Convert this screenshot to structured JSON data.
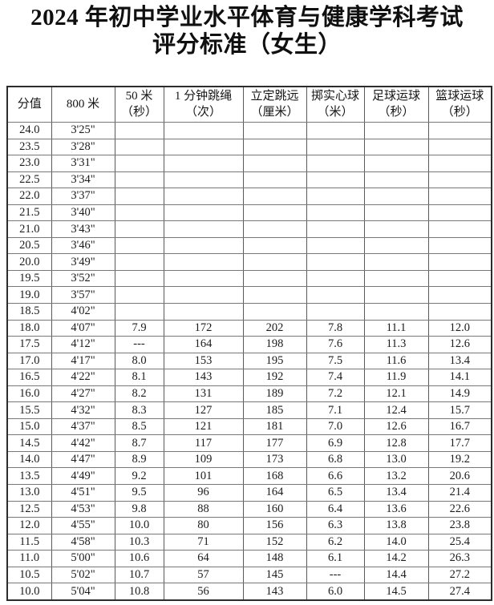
{
  "title": {
    "line1": "2024 年初中学业水平体育与健康学科考试",
    "line2": "评分标准（女生）"
  },
  "table": {
    "headers": [
      [
        "分值"
      ],
      [
        "800 米"
      ],
      [
        "50 米",
        "（秒）"
      ],
      [
        "1 分钟跳绳",
        "（次）"
      ],
      [
        "立定跳远",
        "（厘米）"
      ],
      [
        "掷实心球",
        "（米）"
      ],
      [
        "足球运球",
        "（秒）"
      ],
      [
        "篮球运球",
        "（秒）"
      ]
    ],
    "rows": [
      [
        "24.0",
        "3'25\"",
        "",
        "",
        "",
        "",
        "",
        ""
      ],
      [
        "23.5",
        "3'28\"",
        "",
        "",
        "",
        "",
        "",
        ""
      ],
      [
        "23.0",
        "3'31\"",
        "",
        "",
        "",
        "",
        "",
        ""
      ],
      [
        "22.5",
        "3'34\"",
        "",
        "",
        "",
        "",
        "",
        ""
      ],
      [
        "22.0",
        "3'37\"",
        "",
        "",
        "",
        "",
        "",
        ""
      ],
      [
        "21.5",
        "3'40\"",
        "",
        "",
        "",
        "",
        "",
        ""
      ],
      [
        "21.0",
        "3'43\"",
        "",
        "",
        "",
        "",
        "",
        ""
      ],
      [
        "20.5",
        "3'46\"",
        "",
        "",
        "",
        "",
        "",
        ""
      ],
      [
        "20.0",
        "3'49\"",
        "",
        "",
        "",
        "",
        "",
        ""
      ],
      [
        "19.5",
        "3'52\"",
        "",
        "",
        "",
        "",
        "",
        ""
      ],
      [
        "19.0",
        "3'57\"",
        "",
        "",
        "",
        "",
        "",
        ""
      ],
      [
        "18.5",
        "4'02\"",
        "",
        "",
        "",
        "",
        "",
        ""
      ],
      [
        "18.0",
        "4'07\"",
        "7.9",
        "172",
        "202",
        "7.8",
        "11.1",
        "12.0"
      ],
      [
        "17.5",
        "4'12\"",
        "---",
        "164",
        "198",
        "7.6",
        "11.3",
        "12.6"
      ],
      [
        "17.0",
        "4'17\"",
        "8.0",
        "153",
        "195",
        "7.5",
        "11.6",
        "13.4"
      ],
      [
        "16.5",
        "4'22\"",
        "8.1",
        "143",
        "192",
        "7.4",
        "11.9",
        "14.1"
      ],
      [
        "16.0",
        "4'27\"",
        "8.2",
        "131",
        "189",
        "7.2",
        "12.1",
        "14.9"
      ],
      [
        "15.5",
        "4'32\"",
        "8.3",
        "127",
        "185",
        "7.1",
        "12.4",
        "15.7"
      ],
      [
        "15.0",
        "4'37\"",
        "8.5",
        "121",
        "181",
        "7.0",
        "12.6",
        "16.7"
      ],
      [
        "14.5",
        "4'42\"",
        "8.7",
        "117",
        "177",
        "6.9",
        "12.8",
        "17.7"
      ],
      [
        "14.0",
        "4'47\"",
        "8.9",
        "109",
        "173",
        "6.8",
        "13.0",
        "19.2"
      ],
      [
        "13.5",
        "4'49\"",
        "9.2",
        "101",
        "168",
        "6.6",
        "13.2",
        "20.6"
      ],
      [
        "13.0",
        "4'51\"",
        "9.5",
        "96",
        "164",
        "6.5",
        "13.4",
        "21.4"
      ],
      [
        "12.5",
        "4'53\"",
        "9.8",
        "88",
        "160",
        "6.4",
        "13.6",
        "22.6"
      ],
      [
        "12.0",
        "4'55\"",
        "10.0",
        "80",
        "156",
        "6.3",
        "13.8",
        "23.8"
      ],
      [
        "11.5",
        "4'58\"",
        "10.3",
        "71",
        "152",
        "6.2",
        "14.0",
        "25.4"
      ],
      [
        "11.0",
        "5'00\"",
        "10.6",
        "64",
        "148",
        "6.1",
        "14.2",
        "26.3"
      ],
      [
        "10.5",
        "5'02\"",
        "10.7",
        "57",
        "145",
        "---",
        "14.4",
        "27.2"
      ],
      [
        "10.0",
        "5'04\"",
        "10.8",
        "56",
        "143",
        "6.0",
        "14.5",
        "27.4"
      ]
    ]
  },
  "colors": {
    "text": "#1a1a1a",
    "inner_border": "#5a5a5a",
    "outer_border": "#2c2c2c",
    "background": "#ffffff"
  }
}
